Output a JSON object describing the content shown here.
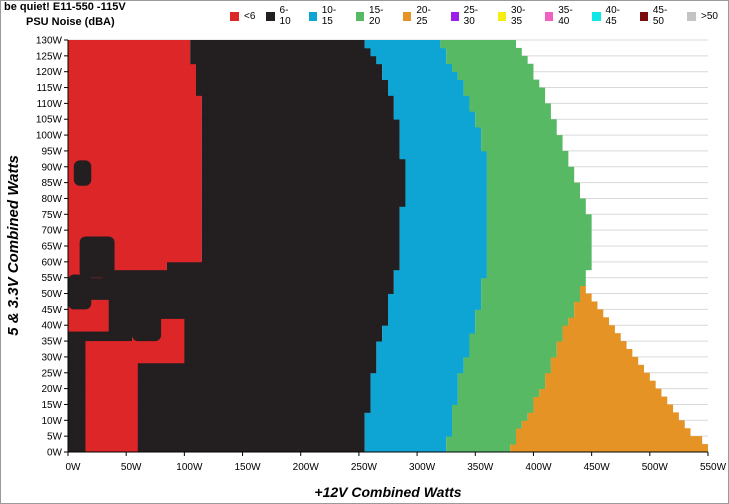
{
  "title": "be quiet! E11-550 -115V",
  "subtitle": "PSU Noise (dBA)",
  "legend": [
    {
      "label": "<6",
      "color": "#dc2628"
    },
    {
      "label": "6-10",
      "color": "#231f20"
    },
    {
      "label": "10-15",
      "color": "#0ea5d4"
    },
    {
      "label": "15-20",
      "color": "#57b964"
    },
    {
      "label": "20-25",
      "color": "#e59324"
    },
    {
      "label": "25-30",
      "color": "#9b1fe8"
    },
    {
      "label": "30-35",
      "color": "#f5ee12"
    },
    {
      "label": "35-40",
      "color": "#f062c0"
    },
    {
      "label": "40-45",
      "color": "#10e8e8"
    },
    {
      "label": "45-50",
      "color": "#7a0c0c"
    },
    {
      "label": ">50",
      "color": "#c4c4c4"
    }
  ],
  "chart_data": {
    "type": "heatmap",
    "title": "be quiet! E11-550 -115V",
    "subtitle": "PSU Noise (dBA)",
    "xlabel": "+12V Combined Watts",
    "ylabel": "5 & 3.3V Combined Watts",
    "x_ticks": [
      "0W",
      "50W",
      "100W",
      "150W",
      "200W",
      "250W",
      "300W",
      "350W",
      "400W",
      "450W",
      "500W",
      "550W"
    ],
    "y_ticks": [
      "0W",
      "5W",
      "10W",
      "15W",
      "20W",
      "25W",
      "30W",
      "35W",
      "40W",
      "45W",
      "50W",
      "55W",
      "60W",
      "65W",
      "70W",
      "75W",
      "80W",
      "85W",
      "90W",
      "95W",
      "100W",
      "105W",
      "110W",
      "115W",
      "120W",
      "125W",
      "130W"
    ],
    "xlim": [
      0,
      550
    ],
    "ylim": [
      0,
      130
    ],
    "grid": true,
    "legend_position": "top",
    "band_upper_edges_by_y": {
      "y": [
        0,
        5,
        10,
        15,
        20,
        25,
        30,
        35,
        40,
        45,
        50,
        55,
        60,
        65,
        70,
        75,
        80,
        85,
        90,
        95,
        100,
        105,
        110,
        115,
        120,
        125,
        130
      ],
      "below_6_to": [
        0,
        0,
        0,
        0,
        0,
        0,
        0,
        0,
        0,
        0,
        0,
        0,
        115,
        115,
        115,
        115,
        115,
        115,
        115,
        115,
        115,
        115,
        115,
        110,
        110,
        105,
        105
      ],
      "6_10_to": [
        255,
        255,
        257,
        258,
        260,
        262,
        265,
        268,
        272,
        275,
        278,
        281,
        283,
        285,
        286,
        287,
        288,
        288,
        288,
        287,
        285,
        283,
        280,
        276,
        270,
        262,
        255
      ],
      "10_15_to": [
        325,
        328,
        330,
        332,
        335,
        338,
        342,
        345,
        350,
        353,
        355,
        358,
        360,
        362,
        362,
        362,
        362,
        361,
        360,
        358,
        355,
        350,
        345,
        340,
        333,
        325,
        315
      ],
      "15_20_to": [
        380,
        385,
        392,
        400,
        406,
        412,
        418,
        422,
        428,
        435,
        440,
        445,
        450,
        452,
        452,
        448,
        443,
        438,
        433,
        428,
        423,
        418,
        413,
        408,
        400,
        392,
        385
      ],
      "20_25_to": [
        550,
        540,
        528,
        518,
        505,
        495,
        485,
        475,
        465,
        455,
        448,
        440,
        435,
        430,
        428,
        428,
        425,
        422,
        418,
        415,
        410,
        405,
        400,
        395,
        390,
        385,
        380
      ]
    },
    "below_6_patches": [
      {
        "x_range": [
          0,
          35
        ],
        "y_range": [
          38,
          48
        ]
      },
      {
        "x_range": [
          55,
          100
        ],
        "y_range": [
          28,
          42
        ]
      },
      {
        "x_range": [
          15,
          60
        ],
        "y_range": [
          0,
          35
        ]
      }
    ],
    "dark_patches_inside_below_6": [
      {
        "x_range": [
          5,
          20
        ],
        "y_range": [
          84,
          92
        ]
      },
      {
        "x_range": [
          10,
          40
        ],
        "y_range": [
          55,
          68
        ]
      },
      {
        "x_range": [
          0,
          20
        ],
        "y_range": [
          45,
          56
        ]
      },
      {
        "x_range": [
          55,
          80
        ],
        "y_range": [
          35,
          52
        ]
      }
    ]
  }
}
